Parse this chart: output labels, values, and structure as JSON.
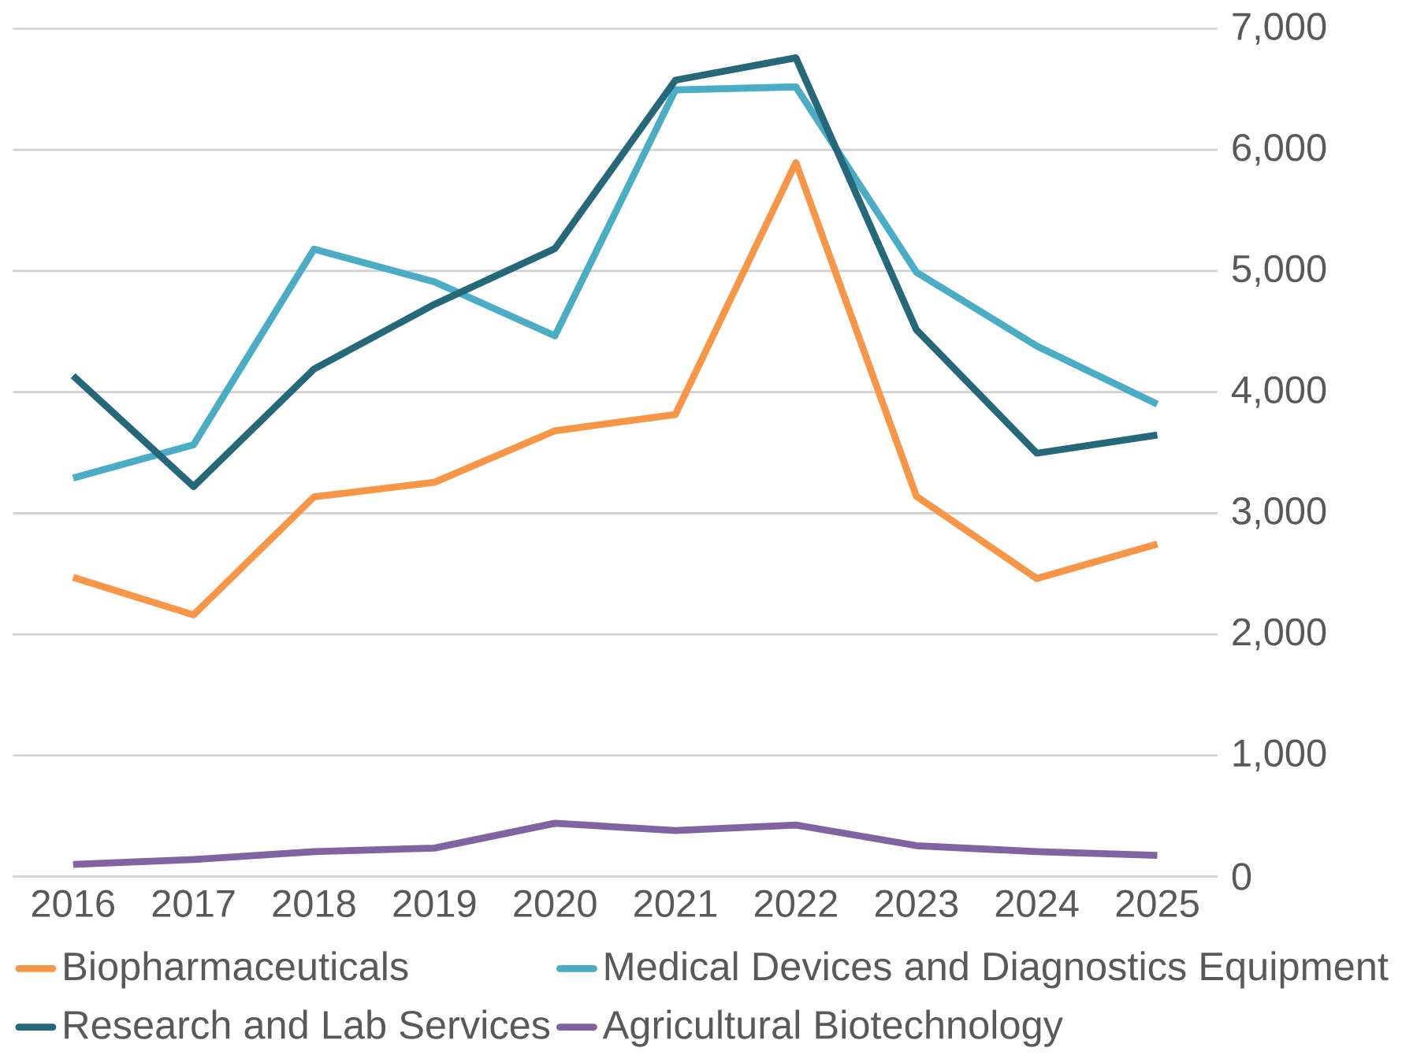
{
  "chart_data": {
    "type": "line",
    "categories": [
      "2016",
      "2017",
      "2018",
      "2019",
      "2020",
      "2021",
      "2022",
      "2023",
      "2024",
      "2025"
    ],
    "series": [
      {
        "name": "Biopharmaceuticals",
        "color": "#f79646",
        "values": [
          2470,
          2160,
          3135,
          3255,
          3680,
          3815,
          5895,
          3140,
          2460,
          2745
        ]
      },
      {
        "name": "Medical Devices and Diagnostics Equipment",
        "color": "#4bacc6",
        "values": [
          3290,
          3565,
          5180,
          4910,
          4465,
          6495,
          6520,
          4990,
          4380,
          3900
        ]
      },
      {
        "name": "Research and Lab Services",
        "color": "#24687a",
        "values": [
          4135,
          3220,
          4190,
          4725,
          5185,
          6575,
          6760,
          4515,
          3495,
          3645
        ]
      },
      {
        "name": "Agricultural Biotechnology",
        "color": "#8064a2",
        "values": [
          100,
          140,
          205,
          235,
          440,
          380,
          425,
          255,
          205,
          175
        ]
      }
    ],
    "ylim": [
      0,
      7000
    ],
    "yticks": [
      {
        "value": 0,
        "label": "0"
      },
      {
        "value": 1000,
        "label": "1,000"
      },
      {
        "value": 2000,
        "label": "2,000"
      },
      {
        "value": 3000,
        "label": "3,000"
      },
      {
        "value": 4000,
        "label": "4,000"
      },
      {
        "value": 5000,
        "label": "5,000"
      },
      {
        "value": 6000,
        "label": "6,000"
      },
      {
        "value": 7000,
        "label": "7,000"
      }
    ],
    "grid": "y",
    "legend": "bottom",
    "marker": "none",
    "line_style": "solid"
  }
}
